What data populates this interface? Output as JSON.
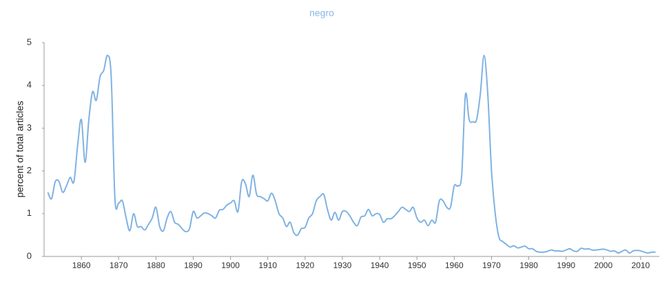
{
  "chart_data": {
    "type": "line",
    "title": "negro",
    "y_label": "percent of total articles",
    "x": [
      1851,
      1852,
      1853,
      1854,
      1855,
      1856,
      1857,
      1858,
      1859,
      1860,
      1861,
      1862,
      1863,
      1864,
      1865,
      1866,
      1867,
      1868,
      1869,
      1870,
      1871,
      1872,
      1873,
      1874,
      1875,
      1876,
      1877,
      1878,
      1879,
      1880,
      1881,
      1882,
      1883,
      1884,
      1885,
      1886,
      1887,
      1888,
      1889,
      1890,
      1891,
      1892,
      1893,
      1894,
      1895,
      1896,
      1897,
      1898,
      1899,
      1900,
      1901,
      1902,
      1903,
      1904,
      1905,
      1906,
      1907,
      1908,
      1909,
      1910,
      1911,
      1912,
      1913,
      1914,
      1915,
      1916,
      1917,
      1918,
      1919,
      1920,
      1921,
      1922,
      1923,
      1924,
      1925,
      1926,
      1927,
      1928,
      1929,
      1930,
      1931,
      1932,
      1933,
      1934,
      1935,
      1936,
      1937,
      1938,
      1939,
      1940,
      1941,
      1942,
      1943,
      1944,
      1945,
      1946,
      1947,
      1948,
      1949,
      1950,
      1951,
      1952,
      1953,
      1954,
      1955,
      1956,
      1957,
      1958,
      1959,
      1960,
      1961,
      1962,
      1963,
      1964,
      1965,
      1966,
      1967,
      1968,
      1969,
      1970,
      1971,
      1972,
      1973,
      1974,
      1975,
      1976,
      1977,
      1978,
      1979,
      1980,
      1981,
      1982,
      1983,
      1984,
      1985,
      1986,
      1987,
      1988,
      1989,
      1990,
      1991,
      1992,
      1993,
      1994,
      1995,
      1996,
      1997,
      1998,
      1999,
      2000,
      2001,
      2002,
      2003,
      2004,
      2005,
      2006,
      2007,
      2008,
      2009,
      2010,
      2011,
      2012,
      2013,
      2014
    ],
    "series": [
      {
        "name": "negro",
        "color": "#7fb2e2",
        "values": [
          1.5,
          1.35,
          1.75,
          1.75,
          1.5,
          1.65,
          1.85,
          1.75,
          2.6,
          3.2,
          2.2,
          3.2,
          3.85,
          3.65,
          4.2,
          4.35,
          4.7,
          4.2,
          1.35,
          1.25,
          1.3,
          0.9,
          0.6,
          1.0,
          0.7,
          0.7,
          0.62,
          0.75,
          0.9,
          1.15,
          0.7,
          0.6,
          0.9,
          1.05,
          0.8,
          0.75,
          0.65,
          0.58,
          0.65,
          1.05,
          0.9,
          0.95,
          1.02,
          1.0,
          0.95,
          0.9,
          1.08,
          1.1,
          1.2,
          1.25,
          1.3,
          1.05,
          1.75,
          1.7,
          1.4,
          1.9,
          1.45,
          1.4,
          1.35,
          1.3,
          1.48,
          1.3,
          1.0,
          0.9,
          0.7,
          0.8,
          0.55,
          0.5,
          0.65,
          0.68,
          0.9,
          1.0,
          1.3,
          1.4,
          1.45,
          1.1,
          0.85,
          1.03,
          0.85,
          1.05,
          1.05,
          0.95,
          0.8,
          0.72,
          0.92,
          0.95,
          1.1,
          0.95,
          1.0,
          0.98,
          0.8,
          0.88,
          0.88,
          0.95,
          1.05,
          1.15,
          1.1,
          1.05,
          1.15,
          0.9,
          0.8,
          0.85,
          0.72,
          0.85,
          0.8,
          1.3,
          1.3,
          1.15,
          1.15,
          1.65,
          1.65,
          1.9,
          3.78,
          3.2,
          3.15,
          3.2,
          3.8,
          4.7,
          3.8,
          2.0,
          1.0,
          0.45,
          0.35,
          0.28,
          0.22,
          0.25,
          0.2,
          0.22,
          0.24,
          0.18,
          0.18,
          0.12,
          0.1,
          0.1,
          0.12,
          0.15,
          0.13,
          0.13,
          0.12,
          0.15,
          0.18,
          0.13,
          0.12,
          0.19,
          0.17,
          0.18,
          0.15,
          0.15,
          0.16,
          0.17,
          0.15,
          0.12,
          0.13,
          0.08,
          0.12,
          0.15,
          0.08,
          0.13,
          0.14,
          0.13,
          0.1,
          0.08,
          0.1,
          0.1
        ]
      }
    ],
    "xlim": [
      1850,
      2015
    ],
    "xticks": [
      1860,
      1870,
      1880,
      1890,
      1900,
      1910,
      1920,
      1930,
      1940,
      1950,
      1960,
      1970,
      1980,
      1990,
      2000,
      2010
    ],
    "ylim": [
      0,
      5
    ],
    "yticks": [
      0,
      1,
      2,
      3,
      4,
      5
    ]
  }
}
